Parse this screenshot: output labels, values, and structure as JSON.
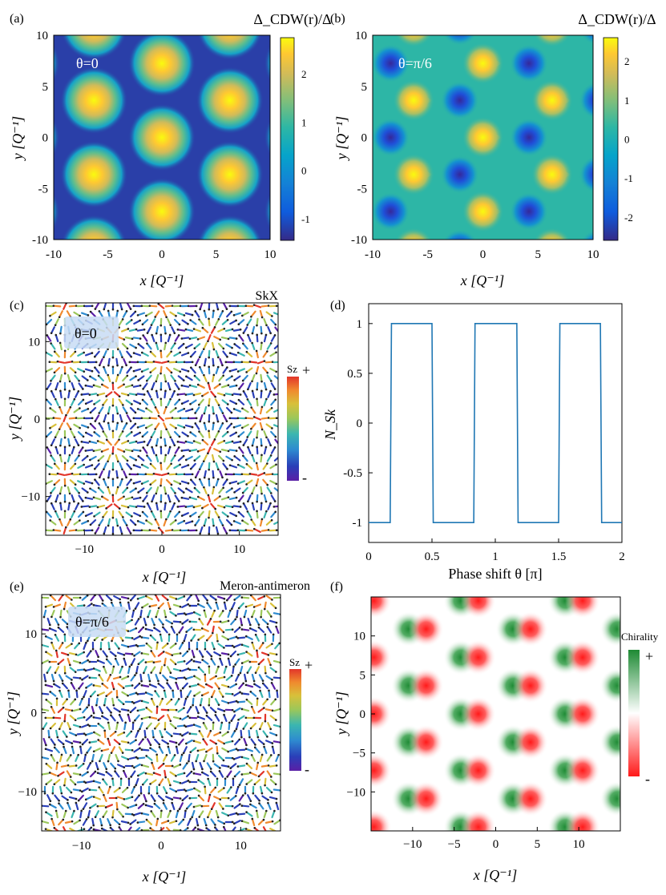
{
  "panels": {
    "a": {
      "label": "(a)",
      "cbar_title": "Δ_CDW(r)/Δ",
      "cbar_ticks": [
        "2",
        "1",
        "0",
        "-1"
      ],
      "annotation": "θ=0",
      "xticks": [
        "-10",
        "-5",
        "0",
        "5",
        "10"
      ],
      "yticks": [
        "10",
        "5",
        "0",
        "-5",
        "-10"
      ],
      "xlabel": "x [Q⁻¹]",
      "ylabel": "y [Q⁻¹]"
    },
    "b": {
      "label": "(b)",
      "cbar_title": "Δ_CDW(r)/Δ",
      "cbar_ticks": [
        "2",
        "1",
        "0",
        "-1",
        "-2"
      ],
      "annotation": "θ=π/6",
      "xticks": [
        "-10",
        "-5",
        "0",
        "5",
        "10"
      ],
      "yticks": [
        "10",
        "5",
        "0",
        "-5",
        "-10"
      ],
      "xlabel": "x [Q⁻¹]",
      "ylabel": "y [Q⁻¹]"
    },
    "c": {
      "label": "(c)",
      "title": "SkX",
      "annotation": "θ=0",
      "cbar_title": "Sz",
      "cbar_plus": "+",
      "cbar_minus": "-",
      "xticks": [
        "−10",
        "0",
        "10"
      ],
      "yticks": [
        "10",
        "0",
        "−10"
      ],
      "xlabel": "x [Q⁻¹]",
      "ylabel": "y [Q⁻¹]"
    },
    "d": {
      "label": "(d)",
      "xticks": [
        "0",
        "0.5",
        "1",
        "1.5",
        "2"
      ],
      "yticks": [
        "1",
        "0.5",
        "0",
        "-0.5",
        "-1"
      ],
      "xlabel": "Phase shift θ [π]",
      "ylabel": "N_Sk"
    },
    "e": {
      "label": "(e)",
      "title": "Meron-antimeron",
      "annotation": "θ=π/6",
      "cbar_title": "Sz",
      "cbar_plus": "+",
      "cbar_minus": "-",
      "xticks": [
        "−10",
        "0",
        "10"
      ],
      "yticks": [
        "10",
        "0",
        "−10"
      ],
      "xlabel": "x [Q⁻¹]",
      "ylabel": "y [Q⁻¹]"
    },
    "f": {
      "label": "(f)",
      "cbar_title": "Chirality",
      "cbar_plus": "+",
      "cbar_minus": "-",
      "xticks": [
        "−10",
        "−5",
        "0",
        "5",
        "10"
      ],
      "yticks": [
        "10",
        "5",
        "0",
        "−5",
        "−10"
      ],
      "xlabel": "x [Q⁻¹]",
      "ylabel": "y [Q⁻¹]"
    }
  },
  "chart_data": {
    "type": "line",
    "xlabel": "Phase shift θ [π]",
    "ylabel": "N_Sk",
    "xlim": [
      0,
      2
    ],
    "ylim": [
      -1.2,
      1.2
    ],
    "series": [
      {
        "color": "#1f77b4",
        "x": [
          0,
          0.17,
          0.18,
          0.5,
          0.51,
          0.83,
          0.84,
          1.17,
          1.18,
          1.5,
          1.51,
          1.83,
          1.84,
          2.0
        ],
        "y": [
          -1,
          -1,
          1,
          1,
          -1,
          -1,
          1,
          1,
          -1,
          -1,
          1,
          1,
          -1,
          -1
        ]
      }
    ]
  },
  "colors": {
    "parula": [
      "#352a87",
      "#0f5cdd",
      "#1481d6",
      "#06a4ca",
      "#2eb7a4",
      "#87bf77",
      "#d1bb59",
      "#fec832",
      "#f9fb0e"
    ],
    "spin": [
      "#5a1fa6",
      "#2a3fb8",
      "#2e8bd0",
      "#3bb6b0",
      "#9bc75a",
      "#d8c03a",
      "#f08a2e",
      "#e2352a"
    ],
    "chirality_pos": "#1e8a34",
    "chirality_neg": "#ff1a1a"
  }
}
